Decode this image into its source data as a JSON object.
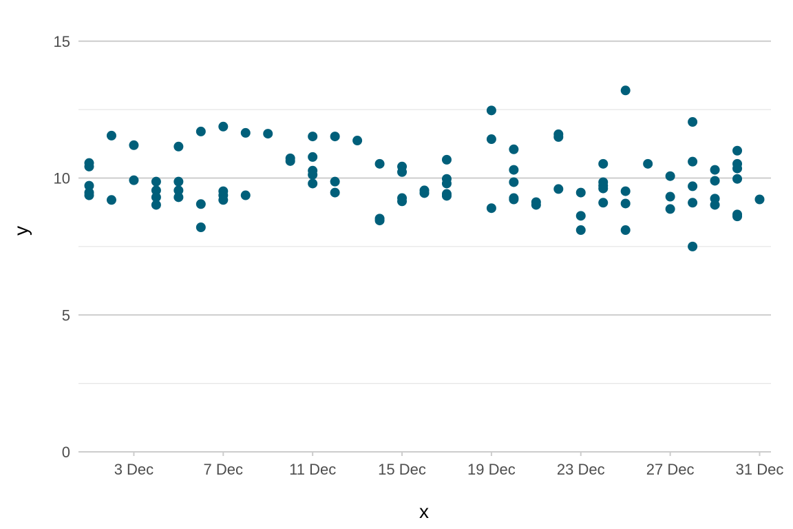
{
  "chart_data": {
    "type": "scatter",
    "title": "",
    "xlabel": "x",
    "ylabel": "y",
    "x_axis": {
      "type": "date",
      "range": [
        "2023-12-01",
        "2023-12-31"
      ],
      "ticks": [
        {
          "value": "2023-12-03",
          "label": "3 Dec"
        },
        {
          "value": "2023-12-07",
          "label": "7 Dec"
        },
        {
          "value": "2023-12-11",
          "label": "11 Dec"
        },
        {
          "value": "2023-12-15",
          "label": "15 Dec"
        },
        {
          "value": "2023-12-19",
          "label": "19 Dec"
        },
        {
          "value": "2023-12-23",
          "label": "23 Dec"
        },
        {
          "value": "2023-12-27",
          "label": "27 Dec"
        },
        {
          "value": "2023-12-31",
          "label": "31 Dec"
        }
      ]
    },
    "y_axis": {
      "range": [
        0,
        16
      ],
      "ticks": [
        {
          "value": 0,
          "label": "0"
        },
        {
          "value": 5,
          "label": "5"
        },
        {
          "value": 10,
          "label": "10"
        },
        {
          "value": 15,
          "label": "15"
        }
      ],
      "minor_gridlines": [
        2.5,
        7.5,
        12.5
      ]
    },
    "grid": true,
    "legend": "none",
    "colors": {
      "point": "#005f7a",
      "major_grid": "#cccccc",
      "minor_grid": "#e5e5e5",
      "axis_line": "#cccccc"
    },
    "points": [
      {
        "x": "2023-12-01",
        "y": 10.55
      },
      {
        "x": "2023-12-01",
        "y": 10.42
      },
      {
        "x": "2023-12-01",
        "y": 9.72
      },
      {
        "x": "2023-12-01",
        "y": 9.47
      },
      {
        "x": "2023-12-01",
        "y": 9.37
      },
      {
        "x": "2023-12-02",
        "y": 11.55
      },
      {
        "x": "2023-12-02",
        "y": 9.2
      },
      {
        "x": "2023-12-03",
        "y": 11.2
      },
      {
        "x": "2023-12-03",
        "y": 9.92
      },
      {
        "x": "2023-12-04",
        "y": 9.87
      },
      {
        "x": "2023-12-04",
        "y": 9.55
      },
      {
        "x": "2023-12-04",
        "y": 9.3
      },
      {
        "x": "2023-12-04",
        "y": 9.02
      },
      {
        "x": "2023-12-05",
        "y": 11.15
      },
      {
        "x": "2023-12-05",
        "y": 9.87
      },
      {
        "x": "2023-12-05",
        "y": 9.55
      },
      {
        "x": "2023-12-05",
        "y": 9.3
      },
      {
        "x": "2023-12-06",
        "y": 11.7
      },
      {
        "x": "2023-12-06",
        "y": 9.05
      },
      {
        "x": "2023-12-06",
        "y": 8.2
      },
      {
        "x": "2023-12-07",
        "y": 11.88
      },
      {
        "x": "2023-12-07",
        "y": 9.52
      },
      {
        "x": "2023-12-07",
        "y": 9.37
      },
      {
        "x": "2023-12-07",
        "y": 9.2
      },
      {
        "x": "2023-12-08",
        "y": 11.65
      },
      {
        "x": "2023-12-08",
        "y": 9.37
      },
      {
        "x": "2023-12-09",
        "y": 11.62
      },
      {
        "x": "2023-12-10",
        "y": 10.72
      },
      {
        "x": "2023-12-10",
        "y": 10.62
      },
      {
        "x": "2023-12-11",
        "y": 11.52
      },
      {
        "x": "2023-12-11",
        "y": 10.77
      },
      {
        "x": "2023-12-11",
        "y": 10.27
      },
      {
        "x": "2023-12-11",
        "y": 10.12
      },
      {
        "x": "2023-12-11",
        "y": 9.8
      },
      {
        "x": "2023-12-12",
        "y": 11.52
      },
      {
        "x": "2023-12-12",
        "y": 9.87
      },
      {
        "x": "2023-12-12",
        "y": 9.47
      },
      {
        "x": "2023-12-13",
        "y": 11.37
      },
      {
        "x": "2023-12-14",
        "y": 10.52
      },
      {
        "x": "2023-12-14",
        "y": 8.52
      },
      {
        "x": "2023-12-14",
        "y": 8.45
      },
      {
        "x": "2023-12-15",
        "y": 10.42
      },
      {
        "x": "2023-12-15",
        "y": 10.22
      },
      {
        "x": "2023-12-15",
        "y": 9.27
      },
      {
        "x": "2023-12-15",
        "y": 9.15
      },
      {
        "x": "2023-12-16",
        "y": 9.55
      },
      {
        "x": "2023-12-16",
        "y": 9.45
      },
      {
        "x": "2023-12-17",
        "y": 10.67
      },
      {
        "x": "2023-12-17",
        "y": 9.97
      },
      {
        "x": "2023-12-17",
        "y": 9.8
      },
      {
        "x": "2023-12-17",
        "y": 9.42
      },
      {
        "x": "2023-12-17",
        "y": 9.35
      },
      {
        "x": "2023-12-19",
        "y": 12.47
      },
      {
        "x": "2023-12-19",
        "y": 11.42
      },
      {
        "x": "2023-12-19",
        "y": 8.9
      },
      {
        "x": "2023-12-20",
        "y": 11.05
      },
      {
        "x": "2023-12-20",
        "y": 10.3
      },
      {
        "x": "2023-12-20",
        "y": 9.85
      },
      {
        "x": "2023-12-20",
        "y": 9.27
      },
      {
        "x": "2023-12-20",
        "y": 9.22
      },
      {
        "x": "2023-12-21",
        "y": 9.12
      },
      {
        "x": "2023-12-21",
        "y": 9.02
      },
      {
        "x": "2023-12-22",
        "y": 11.6
      },
      {
        "x": "2023-12-22",
        "y": 11.5
      },
      {
        "x": "2023-12-22",
        "y": 9.6
      },
      {
        "x": "2023-12-23",
        "y": 9.47
      },
      {
        "x": "2023-12-23",
        "y": 8.62
      },
      {
        "x": "2023-12-23",
        "y": 8.1
      },
      {
        "x": "2023-12-24",
        "y": 10.52
      },
      {
        "x": "2023-12-24",
        "y": 9.85
      },
      {
        "x": "2023-12-24",
        "y": 9.72
      },
      {
        "x": "2023-12-24",
        "y": 9.62
      },
      {
        "x": "2023-12-24",
        "y": 9.1
      },
      {
        "x": "2023-12-25",
        "y": 13.2
      },
      {
        "x": "2023-12-25",
        "y": 9.52
      },
      {
        "x": "2023-12-25",
        "y": 9.07
      },
      {
        "x": "2023-12-25",
        "y": 8.1
      },
      {
        "x": "2023-12-26",
        "y": 10.52
      },
      {
        "x": "2023-12-27",
        "y": 10.07
      },
      {
        "x": "2023-12-27",
        "y": 9.32
      },
      {
        "x": "2023-12-27",
        "y": 8.87
      },
      {
        "x": "2023-12-28",
        "y": 12.05
      },
      {
        "x": "2023-12-28",
        "y": 10.6
      },
      {
        "x": "2023-12-28",
        "y": 9.7
      },
      {
        "x": "2023-12-28",
        "y": 9.1
      },
      {
        "x": "2023-12-28",
        "y": 7.5
      },
      {
        "x": "2023-12-29",
        "y": 10.3
      },
      {
        "x": "2023-12-29",
        "y": 9.9
      },
      {
        "x": "2023-12-29",
        "y": 9.25
      },
      {
        "x": "2023-12-29",
        "y": 9.02
      },
      {
        "x": "2023-12-30",
        "y": 11.0
      },
      {
        "x": "2023-12-30",
        "y": 10.52
      },
      {
        "x": "2023-12-30",
        "y": 10.35
      },
      {
        "x": "2023-12-30",
        "y": 9.97
      },
      {
        "x": "2023-12-30",
        "y": 8.67
      },
      {
        "x": "2023-12-30",
        "y": 8.6
      },
      {
        "x": "2023-12-31",
        "y": 9.22
      }
    ]
  }
}
